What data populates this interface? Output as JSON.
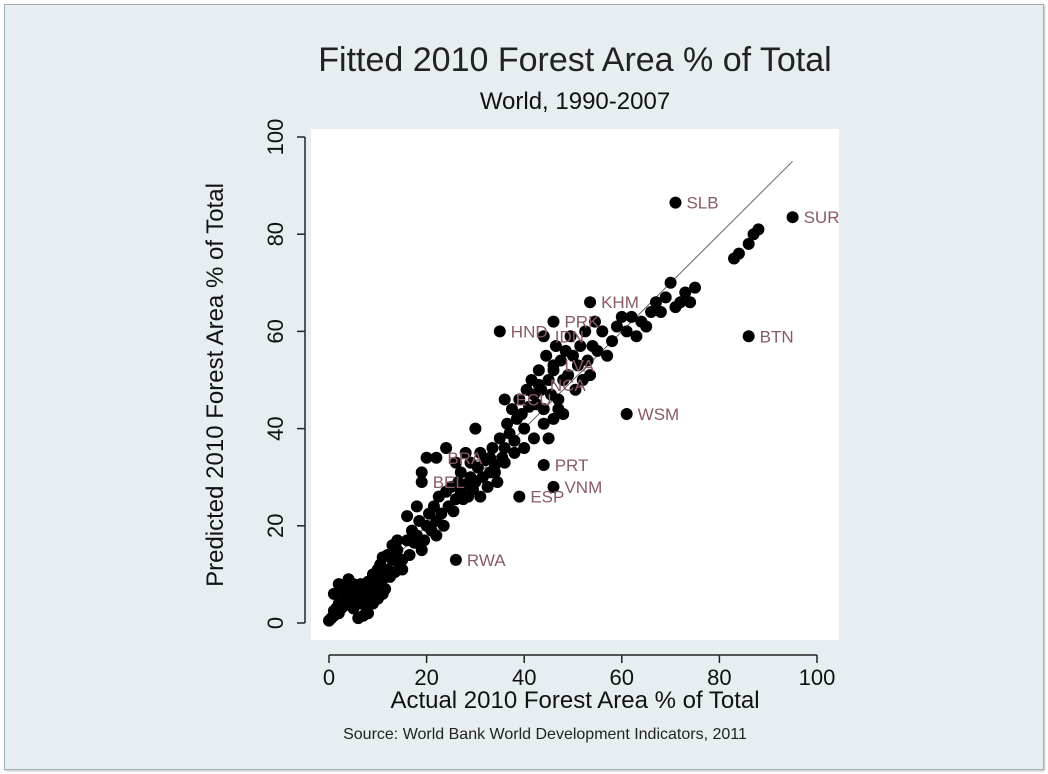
{
  "chart_data": {
    "type": "scatter",
    "title": "Fitted 2010 Forest Area % of Total",
    "subtitle": "World, 1990-2007",
    "xlabel": "Actual 2010 Forest Area % of Total",
    "ylabel": "Predicted 2010 Forest Area % of Total",
    "source": "Source: World Bank World Development Indicators, 2011",
    "xlim": [
      0,
      100
    ],
    "ylim": [
      0,
      100
    ],
    "xticks": [
      "0",
      "20",
      "40",
      "60",
      "80",
      "100"
    ],
    "yticks": [
      "0",
      "20",
      "40",
      "60",
      "80",
      "100"
    ],
    "grid": false,
    "reference_line": {
      "x": [
        0,
        95
      ],
      "y": [
        0,
        95
      ]
    },
    "colors": {
      "background": "#e6eef2",
      "plot": "#ffffff",
      "points": "#000000",
      "labels": "#8a5a64"
    },
    "labeled_points": [
      {
        "label": "SLB",
        "x": 71,
        "y": 86.5
      },
      {
        "label": "SUR",
        "x": 95,
        "y": 83.5
      },
      {
        "label": "KHM",
        "x": 53.5,
        "y": 66
      },
      {
        "label": "PRK",
        "x": 46,
        "y": 62
      },
      {
        "label": "HND",
        "x": 35,
        "y": 60
      },
      {
        "label": "IDN",
        "x": 44,
        "y": 59
      },
      {
        "label": "BTN",
        "x": 86,
        "y": 59
      },
      {
        "label": "LVA",
        "x": 46,
        "y": 53
      },
      {
        "label": "NCA",
        "x": 43,
        "y": 49
      },
      {
        "label": "ECU",
        "x": 36,
        "y": 46
      },
      {
        "label": "WSM",
        "x": 61,
        "y": 43
      },
      {
        "label": "BRA",
        "x": 22,
        "y": 34
      },
      {
        "label": "PRT",
        "x": 44,
        "y": 32.5
      },
      {
        "label": "BEL",
        "x": 19,
        "y": 29
      },
      {
        "label": "VNM",
        "x": 46,
        "y": 28
      },
      {
        "label": "ESP",
        "x": 39,
        "y": 26
      },
      {
        "label": "RWA",
        "x": 26,
        "y": 13
      }
    ],
    "points": [
      [
        0,
        0.5
      ],
      [
        0.5,
        1
      ],
      [
        1,
        1.5
      ],
      [
        1,
        2.5
      ],
      [
        1.5,
        3
      ],
      [
        2,
        2
      ],
      [
        2,
        4
      ],
      [
        2.5,
        3
      ],
      [
        3,
        3.5
      ],
      [
        3,
        5
      ],
      [
        3.5,
        4
      ],
      [
        4,
        4.5
      ],
      [
        4,
        6
      ],
      [
        4.5,
        5
      ],
      [
        5,
        6
      ],
      [
        5,
        3
      ],
      [
        5.5,
        7.5
      ],
      [
        6,
        6.5
      ],
      [
        6,
        4
      ],
      [
        6.5,
        8
      ],
      [
        7,
        5.5
      ],
      [
        7,
        7
      ],
      [
        7.5,
        3.5
      ],
      [
        8,
        6
      ],
      [
        8,
        8.5
      ],
      [
        8.5,
        5
      ],
      [
        9,
        7
      ],
      [
        9,
        10
      ],
      [
        9.5,
        6
      ],
      [
        10,
        11
      ],
      [
        10,
        8
      ],
      [
        10.5,
        12
      ],
      [
        11,
        9
      ],
      [
        11,
        13.5
      ],
      [
        11.5,
        7
      ],
      [
        12,
        11
      ],
      [
        12,
        14
      ],
      [
        12.5,
        9.5
      ],
      [
        13,
        13
      ],
      [
        13.5,
        10.5
      ],
      [
        14,
        15
      ],
      [
        14.5,
        12
      ],
      [
        15,
        11
      ],
      [
        16,
        17
      ],
      [
        16.5,
        14
      ],
      [
        17,
        19
      ],
      [
        17.5,
        16.5
      ],
      [
        18,
        18
      ],
      [
        18.5,
        21
      ],
      [
        19,
        15
      ],
      [
        19.5,
        17
      ],
      [
        20,
        20
      ],
      [
        20.5,
        22.5
      ],
      [
        21,
        19
      ],
      [
        21.5,
        24
      ],
      [
        22,
        21
      ],
      [
        22,
        18
      ],
      [
        22.5,
        26
      ],
      [
        23,
        22.5
      ],
      [
        23.5,
        20
      ],
      [
        24,
        27
      ],
      [
        24.5,
        24
      ],
      [
        25,
        28
      ],
      [
        25.5,
        23
      ],
      [
        26,
        25.5
      ],
      [
        26.5,
        29
      ],
      [
        27,
        27
      ],
      [
        27,
        31
      ],
      [
        27.5,
        25.5
      ],
      [
        28,
        28.5
      ],
      [
        28.5,
        26
      ],
      [
        29,
        30
      ],
      [
        29,
        33
      ],
      [
        29.5,
        27.5
      ],
      [
        30,
        29
      ],
      [
        30.5,
        32
      ],
      [
        31,
        26
      ],
      [
        31,
        35
      ],
      [
        31.5,
        30
      ],
      [
        32,
        33.5
      ],
      [
        32.5,
        28
      ],
      [
        33,
        31
      ],
      [
        33.5,
        36
      ],
      [
        34,
        32.5
      ],
      [
        34.5,
        29
      ],
      [
        35,
        38
      ],
      [
        35.5,
        34
      ],
      [
        36,
        36
      ],
      [
        36.5,
        41
      ],
      [
        37,
        39
      ],
      [
        37.5,
        44
      ],
      [
        38,
        37.5
      ],
      [
        38.5,
        42
      ],
      [
        39,
        46
      ],
      [
        39.5,
        43
      ],
      [
        40,
        40
      ],
      [
        40.5,
        48
      ],
      [
        41,
        44.5
      ],
      [
        41.5,
        50
      ],
      [
        42,
        47
      ],
      [
        42.5,
        45
      ],
      [
        43,
        52
      ],
      [
        43.5,
        48
      ],
      [
        44,
        44
      ],
      [
        44.5,
        55
      ],
      [
        45,
        50
      ],
      [
        45.5,
        47
      ],
      [
        46,
        52
      ],
      [
        46.5,
        57
      ],
      [
        47,
        46
      ],
      [
        47.5,
        54
      ],
      [
        48,
        50
      ],
      [
        48.5,
        56
      ],
      [
        49,
        51
      ],
      [
        49.5,
        59
      ],
      [
        50,
        55
      ],
      [
        50.5,
        48
      ],
      [
        51,
        53
      ],
      [
        51.5,
        57
      ],
      [
        52,
        50
      ],
      [
        52.5,
        60
      ],
      [
        53,
        54
      ],
      [
        53.5,
        51
      ],
      [
        54,
        57
      ],
      [
        54.5,
        62
      ],
      [
        55,
        56
      ],
      [
        56,
        60
      ],
      [
        57,
        55
      ],
      [
        58,
        58
      ],
      [
        59,
        61
      ],
      [
        60,
        63
      ],
      [
        61,
        60
      ],
      [
        62,
        63
      ],
      [
        63,
        59
      ],
      [
        64,
        62
      ],
      [
        65,
        61
      ],
      [
        66,
        64
      ],
      [
        67,
        66
      ],
      [
        68,
        64
      ],
      [
        69,
        67
      ],
      [
        70,
        70
      ],
      [
        71,
        65
      ],
      [
        72,
        66
      ],
      [
        73,
        68
      ],
      [
        74,
        66
      ],
      [
        75,
        69
      ],
      [
        83,
        75
      ],
      [
        84,
        76
      ],
      [
        86,
        78
      ],
      [
        87,
        80
      ],
      [
        88,
        81
      ],
      [
        44,
        41
      ],
      [
        46,
        42
      ],
      [
        47,
        44
      ],
      [
        48,
        43
      ],
      [
        45,
        38
      ],
      [
        42,
        38
      ],
      [
        40,
        36
      ],
      [
        38,
        35
      ],
      [
        36,
        33
      ],
      [
        34,
        31
      ],
      [
        33,
        34
      ],
      [
        30,
        40
      ],
      [
        28,
        35
      ],
      [
        26,
        33
      ],
      [
        24,
        36
      ],
      [
        20,
        34
      ],
      [
        19,
        31
      ],
      [
        18,
        24
      ],
      [
        16,
        22
      ],
      [
        15,
        13
      ],
      [
        14,
        17
      ],
      [
        13,
        16
      ],
      [
        12,
        10
      ],
      [
        11,
        6
      ],
      [
        10,
        5
      ],
      [
        9,
        4
      ],
      [
        8,
        2
      ],
      [
        7,
        1.5
      ],
      [
        6,
        1
      ],
      [
        5,
        8
      ],
      [
        4,
        9
      ],
      [
        3,
        7
      ],
      [
        2,
        8
      ],
      [
        1,
        6
      ]
    ]
  }
}
